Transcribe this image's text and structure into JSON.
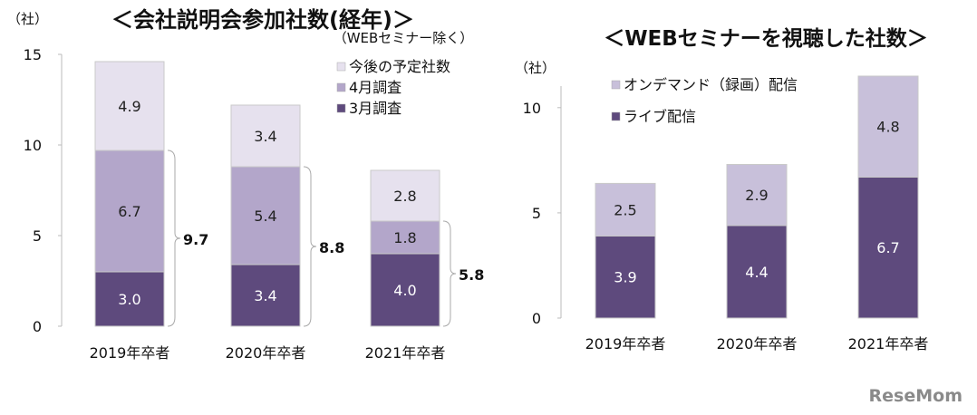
{
  "chart_data": [
    {
      "type": "bar",
      "stacked": true,
      "title": "＜会社説明会参加社数(経年)＞",
      "subtitle": "（WEBセミナー除く）",
      "ylabel": "（社）",
      "ylim": [
        0,
        15
      ],
      "yticks": [
        "0",
        "5",
        "10",
        "15"
      ],
      "grid": false,
      "legend_position": "top-right",
      "categories": [
        "2019年卒者",
        "2020年卒者",
        "2021年卒者"
      ],
      "series": [
        {
          "name": "3月調査",
          "values": [
            3.0,
            3.4,
            4.0
          ],
          "labels": [
            "3.0",
            "3.4",
            "4.0"
          ],
          "color": "#5e4a7d",
          "label_color": "#ffffff"
        },
        {
          "name": "4月調査",
          "values": [
            6.7,
            5.4,
            1.8
          ],
          "labels": [
            "6.7",
            "5.4",
            "1.8"
          ],
          "color": "#b3a6ca",
          "label_color": "#222222"
        },
        {
          "name": "今後の予定社数",
          "values": [
            4.9,
            3.4,
            2.8
          ],
          "labels": [
            "4.9",
            "3.4",
            "2.8"
          ],
          "color": "#e6e1ee",
          "label_color": "#222222"
        }
      ],
      "legend_order": [
        "今後の予定社数",
        "4月調査",
        "3月調査"
      ],
      "bracket_totals": [
        "9.7",
        "8.8",
        "5.8"
      ]
    },
    {
      "type": "bar",
      "stacked": true,
      "title": "＜WEBセミナーを視聴した社数＞",
      "ylabel": "（社）",
      "ylim": [
        0,
        11
      ],
      "yticks": [
        "0",
        "5",
        "10"
      ],
      "grid": false,
      "legend_position": "top-left",
      "categories": [
        "2019年卒者",
        "2020年卒者",
        "2021年卒者"
      ],
      "series": [
        {
          "name": "ライブ配信",
          "values": [
            3.9,
            4.4,
            6.7
          ],
          "labels": [
            "3.9",
            "4.4",
            "6.7"
          ],
          "color": "#5e4a7d",
          "label_color": "#ffffff"
        },
        {
          "name": "オンデマンド（録画）配信",
          "values": [
            2.5,
            2.9,
            4.8
          ],
          "labels": [
            "2.5",
            "2.9",
            "4.8"
          ],
          "color": "#c8c0da",
          "label_color": "#222222"
        }
      ],
      "legend_order": [
        "オンデマンド（録画）配信",
        "ライブ配信"
      ]
    }
  ],
  "watermark": "ReseMom"
}
